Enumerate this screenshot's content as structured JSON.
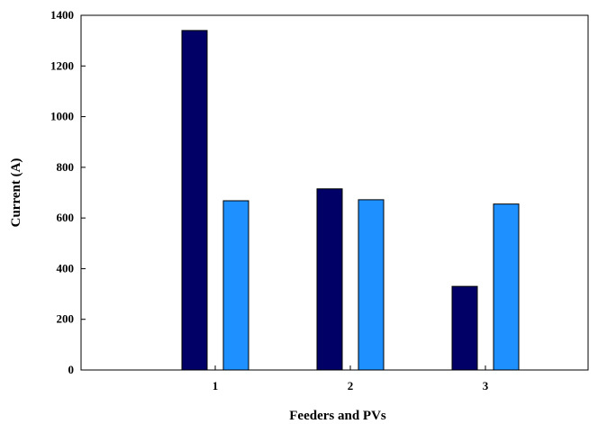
{
  "chart_data": {
    "type": "bar",
    "title": "",
    "xlabel": "Feeders and PVs",
    "ylabel": "Current (A)",
    "categories": [
      "1",
      "2",
      "3"
    ],
    "series": [
      {
        "values": [
          1340,
          715,
          330
        ],
        "color": "#000066"
      },
      {
        "values": [
          668,
          672,
          655
        ],
        "color": "#1e90ff"
      }
    ],
    "ylim": [
      0,
      1400
    ],
    "yticks": [
      0,
      200,
      400,
      600,
      800,
      1000,
      1200,
      1400
    ],
    "grid": false,
    "legend": "none"
  }
}
